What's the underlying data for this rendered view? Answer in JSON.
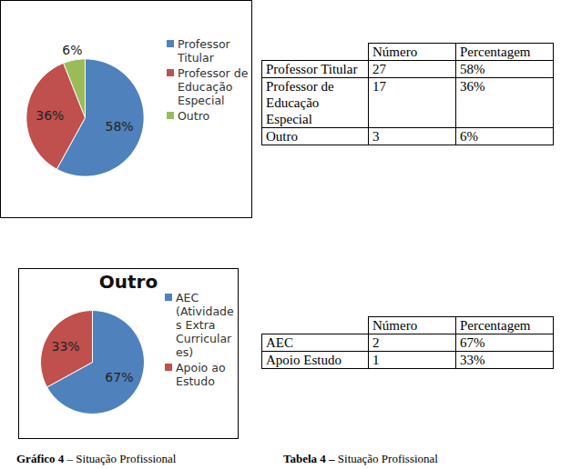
{
  "chart_data": [
    {
      "type": "pie",
      "categories": [
        "Professor Titular",
        "Professor de Educação Especial",
        "Outro"
      ],
      "values": [
        58,
        36,
        6
      ],
      "value_labels": [
        "58%",
        "36%",
        "6%"
      ],
      "colors": [
        "#4f81bd",
        "#c0504d",
        "#9bbb59"
      ],
      "data_labels": true,
      "legend": "right"
    },
    {
      "type": "pie",
      "title": "Outro",
      "categories": [
        "AEC (Atividades Extra Curriculares)",
        "Apoio ao Estudo"
      ],
      "values": [
        67,
        33
      ],
      "value_labels": [
        "67%",
        "33%"
      ],
      "colors": [
        "#4f81bd",
        "#c0504d"
      ],
      "data_labels": true,
      "legend": "right"
    }
  ],
  "tables": [
    {
      "header": [
        "",
        "Número",
        "Percentagem"
      ],
      "rows": [
        [
          "Professor Titular",
          "27",
          "58%"
        ],
        [
          "Professor de Educação Especial",
          "17",
          "36%"
        ],
        [
          "Outro",
          "3",
          "6%"
        ]
      ]
    },
    {
      "header": [
        "",
        "Número",
        "Percentagem"
      ],
      "rows": [
        [
          "AEC",
          "2",
          "67%"
        ],
        [
          "Apoio Estudo",
          "1",
          "33%"
        ]
      ]
    }
  ],
  "captions": [
    {
      "bold": "Gráfico 4",
      "text": "– Situação Profissional"
    },
    {
      "bold": "Tabela 4 –",
      "text": "Situação Profissional"
    }
  ]
}
